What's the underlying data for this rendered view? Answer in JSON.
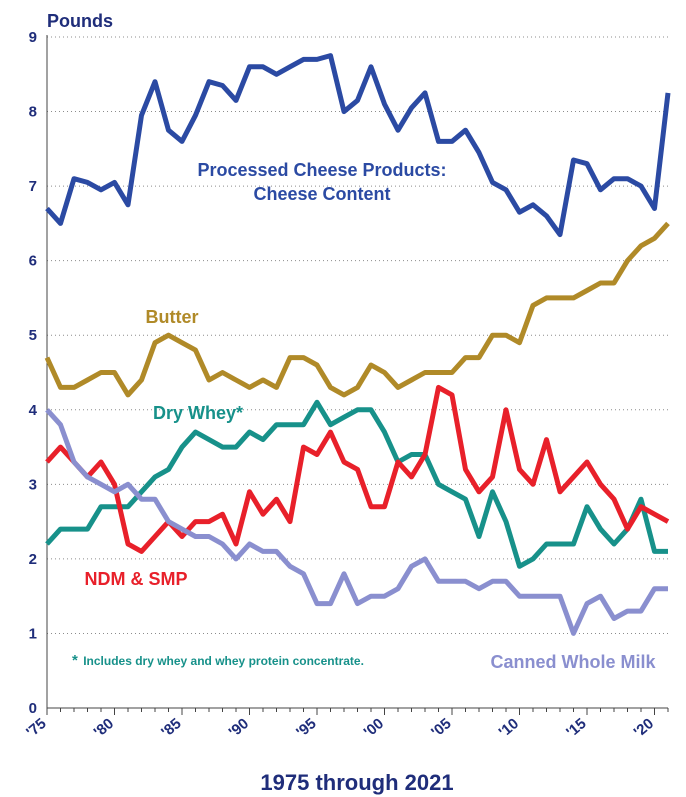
{
  "chart_data": {
    "type": "line",
    "title": "",
    "ylabel": "Pounds",
    "xlabel": "1975 through 2021",
    "xlim": [
      1975,
      2021
    ],
    "ylim": [
      0,
      9
    ],
    "yticks": [
      0,
      1,
      2,
      3,
      4,
      5,
      6,
      7,
      8,
      9
    ],
    "xticks": [
      {
        "x": 1975,
        "label": "'75"
      },
      {
        "x": 1980,
        "label": "'80"
      },
      {
        "x": 1985,
        "label": "'85"
      },
      {
        "x": 1990,
        "label": "'90"
      },
      {
        "x": 1995,
        "label": "'95"
      },
      {
        "x": 2000,
        "label": "'00"
      },
      {
        "x": 2005,
        "label": "'05"
      },
      {
        "x": 2010,
        "label": "'10"
      },
      {
        "x": 2015,
        "label": "'15"
      },
      {
        "x": 2020,
        "label": "'20"
      }
    ],
    "grid": "horizontal-dotted",
    "x": [
      1975,
      1976,
      1977,
      1978,
      1979,
      1980,
      1981,
      1982,
      1983,
      1984,
      1985,
      1986,
      1987,
      1988,
      1989,
      1990,
      1991,
      1992,
      1993,
      1994,
      1995,
      1996,
      1997,
      1998,
      1999,
      2000,
      2001,
      2002,
      2003,
      2004,
      2005,
      2006,
      2007,
      2008,
      2009,
      2010,
      2011,
      2012,
      2013,
      2014,
      2015,
      2016,
      2017,
      2018,
      2019,
      2020,
      2021
    ],
    "series": [
      {
        "name": "Processed Cheese Products: Cheese Content",
        "label_lines": [
          "Processed Cheese Products:",
          "Cheese Content"
        ],
        "color": "#2b4aa3",
        "values": [
          6.7,
          6.5,
          7.1,
          7.05,
          6.95,
          7.05,
          6.75,
          7.95,
          8.4,
          7.75,
          7.6,
          7.95,
          8.4,
          8.35,
          8.15,
          8.6,
          8.6,
          8.5,
          8.6,
          8.7,
          8.7,
          8.75,
          8.0,
          8.15,
          8.6,
          8.1,
          7.75,
          8.05,
          8.25,
          7.6,
          7.6,
          7.75,
          7.45,
          7.05,
          6.95,
          6.65,
          6.75,
          6.6,
          6.35,
          7.35,
          7.3,
          6.95,
          7.1,
          7.1,
          7.0,
          6.7,
          8.25
        ]
      },
      {
        "name": "Butter",
        "label_lines": [
          "Butter"
        ],
        "color": "#b08a28",
        "values": [
          4.7,
          4.3,
          4.3,
          4.4,
          4.5,
          4.5,
          4.2,
          4.4,
          4.9,
          5.0,
          4.9,
          4.8,
          4.4,
          4.5,
          4.4,
          4.3,
          4.4,
          4.3,
          4.7,
          4.7,
          4.6,
          4.3,
          4.2,
          4.3,
          4.6,
          4.5,
          4.3,
          4.4,
          4.5,
          4.5,
          4.5,
          4.7,
          4.7,
          5.0,
          5.0,
          4.9,
          5.4,
          5.5,
          5.5,
          5.5,
          5.6,
          5.7,
          5.7,
          6.0,
          6.2,
          6.3,
          6.5
        ]
      },
      {
        "name": "Dry Whey*",
        "label_lines": [
          "Dry Whey*"
        ],
        "color": "#17918a",
        "values": [
          2.2,
          2.4,
          2.4,
          2.4,
          2.7,
          2.7,
          2.7,
          2.9,
          3.1,
          3.2,
          3.5,
          3.7,
          3.6,
          3.5,
          3.5,
          3.7,
          3.6,
          3.8,
          3.8,
          3.8,
          4.1,
          3.8,
          3.9,
          4.0,
          4.0,
          3.7,
          3.3,
          3.4,
          3.4,
          3.0,
          2.9,
          2.8,
          2.3,
          2.9,
          2.5,
          1.9,
          2.0,
          2.2,
          2.2,
          2.2,
          2.7,
          2.4,
          2.2,
          2.4,
          2.8,
          2.1,
          2.1
        ]
      },
      {
        "name": "NDM & SMP",
        "label_lines": [
          "NDM & SMP"
        ],
        "color": "#e8202a",
        "values": [
          3.3,
          3.5,
          3.3,
          3.1,
          3.3,
          3.0,
          2.2,
          2.1,
          2.3,
          2.5,
          2.3,
          2.5,
          2.5,
          2.6,
          2.2,
          2.9,
          2.6,
          2.8,
          2.5,
          3.5,
          3.4,
          3.7,
          3.3,
          3.2,
          2.7,
          2.7,
          3.3,
          3.1,
          3.4,
          4.3,
          4.2,
          3.2,
          2.9,
          3.1,
          4.0,
          3.2,
          3.0,
          3.6,
          2.9,
          3.1,
          3.3,
          3.0,
          2.8,
          2.4,
          2.7,
          2.6,
          2.5
        ]
      },
      {
        "name": "Canned Whole Milk",
        "label_lines": [
          "Canned Whole Milk"
        ],
        "color": "#8a8fcf",
        "values": [
          4.0,
          3.8,
          3.3,
          3.1,
          3.0,
          2.9,
          3.0,
          2.8,
          2.8,
          2.5,
          2.4,
          2.3,
          2.3,
          2.2,
          2.0,
          2.2,
          2.1,
          2.1,
          1.9,
          1.8,
          1.4,
          1.4,
          1.8,
          1.4,
          1.5,
          1.5,
          1.6,
          1.9,
          2.0,
          1.7,
          1.7,
          1.7,
          1.6,
          1.7,
          1.7,
          1.5,
          1.5,
          1.5,
          1.5,
          1.0,
          1.4,
          1.5,
          1.2,
          1.3,
          1.3,
          1.6,
          1.6
        ]
      }
    ],
    "footnote": "* Includes dry whey and whey protein concentrate."
  }
}
